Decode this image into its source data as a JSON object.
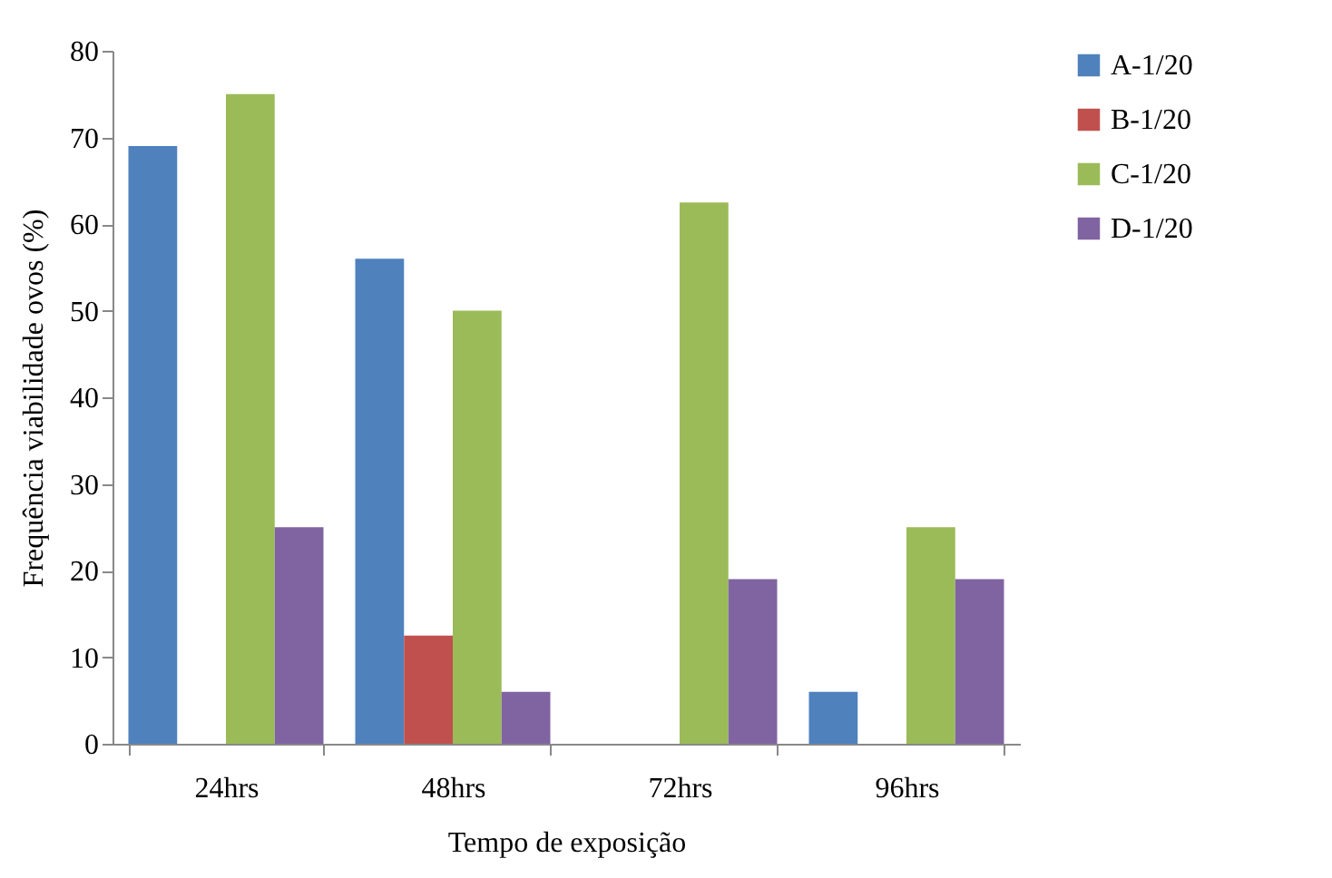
{
  "chart_data": {
    "type": "bar",
    "xlabel": "Tempo de exposição",
    "ylabel": "Frequência viabilidade ovos (%)",
    "categories": [
      "24hrs",
      "48hrs",
      "72hrs",
      "96hrs"
    ],
    "series": [
      {
        "name": "A-1/20",
        "color": "#4f81bd",
        "values": [
          69,
          56,
          0,
          6
        ]
      },
      {
        "name": "B-1/20",
        "color": "#c0504d",
        "values": [
          0,
          12.5,
          0,
          0
        ]
      },
      {
        "name": "C-1/20",
        "color": "#9bbb59",
        "values": [
          75,
          50,
          62.5,
          25
        ]
      },
      {
        "name": "D-1/20",
        "color": "#8064a2",
        "values": [
          25,
          6,
          19,
          19
        ]
      }
    ],
    "ylim": [
      0,
      80
    ],
    "yticks": [
      0,
      10,
      20,
      30,
      40,
      50,
      60,
      70,
      80
    ],
    "legend": "right"
  }
}
